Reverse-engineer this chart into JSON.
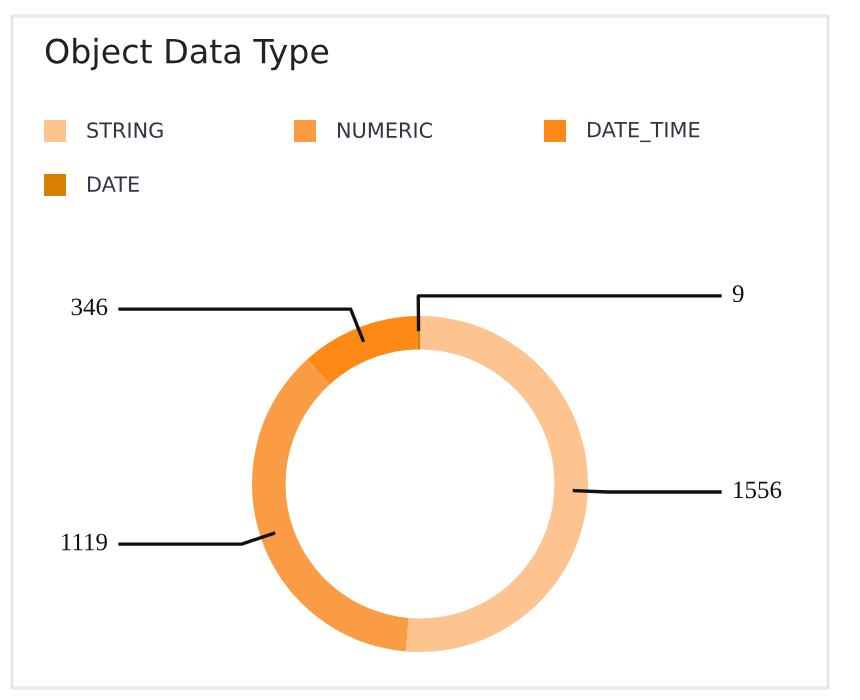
{
  "chart_data": {
    "type": "donut",
    "title": "Object Data Type",
    "categories": [
      "STRING",
      "NUMERIC",
      "DATE_TIME",
      "DATE"
    ],
    "values": [
      1556,
      1119,
      346,
      9
    ],
    "colors": [
      "#fec48f",
      "#fa9c44",
      "#fd8a17",
      "#d67f00"
    ],
    "data_labels": true,
    "legend": "top"
  }
}
